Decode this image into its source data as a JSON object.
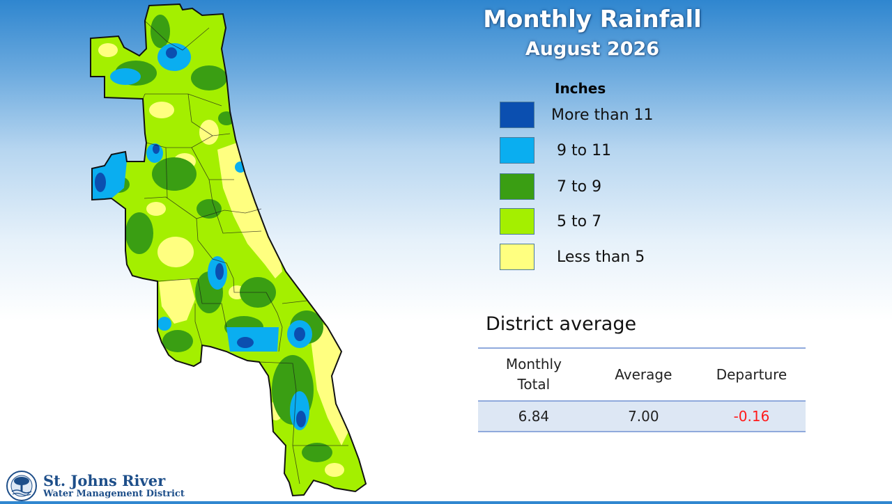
{
  "title": "Monthly Rainfall",
  "subtitle": "August 2026",
  "legend": {
    "title": "Inches",
    "items": [
      {
        "label": "More than 11",
        "color": "#0b4fb0"
      },
      {
        "label": "9 to 11",
        "color": "#0aaef0"
      },
      {
        "label": "7 to 9",
        "color": "#3a9e13"
      },
      {
        "label": "5 to 7",
        "color": "#a4ef00"
      },
      {
        "label": "Less than 5",
        "color": "#ffff80"
      }
    ]
  },
  "district_average": {
    "heading": "District average",
    "columns": [
      "Monthly\nTotal",
      "Average",
      "Departure"
    ],
    "values": [
      "6.84",
      "7.00",
      "-0.16"
    ],
    "departure_color": "#ff1a1a"
  },
  "logo": {
    "name": "St. Johns River",
    "subtitle": "Water Management District"
  }
}
